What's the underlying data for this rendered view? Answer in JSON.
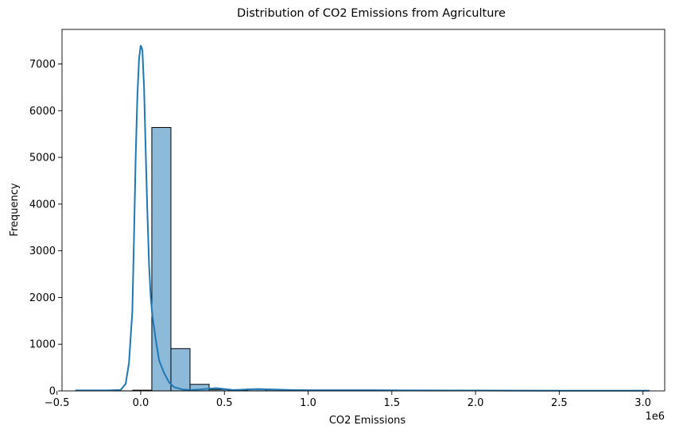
{
  "chart_data": {
    "type": "histogram",
    "title": "Distribution of CO2 Emissions from Agriculture",
    "xlabel": "CO2 Emissions",
    "ylabel": "Frequency",
    "x_offset_label": "1e6",
    "xlim": [
      -0.47,
      3.13
    ],
    "ylim": [
      0,
      7740
    ],
    "x_unit_scale": 1000000,
    "x_ticks": [
      -0.5,
      0.0,
      0.5,
      1.0,
      1.5,
      2.0,
      2.5,
      3.0
    ],
    "x_tick_labels": [
      "−0.5",
      "0.0",
      "0.5",
      "1.0",
      "1.5",
      "2.0",
      "2.5",
      "3.0"
    ],
    "y_ticks": [
      0,
      1000,
      2000,
      3000,
      4000,
      5000,
      6000,
      7000
    ],
    "y_tick_labels": [
      "0",
      "1000",
      "2000",
      "3000",
      "4000",
      "5000",
      "6000",
      "7000"
    ],
    "bins": {
      "start": -0.39,
      "width": 0.1141,
      "counts": [
        2,
        0,
        1,
        15,
        5640,
        905,
        140,
        30,
        12,
        40,
        25,
        18,
        10,
        8,
        6,
        5,
        4,
        3,
        3,
        2,
        2,
        1,
        1,
        1,
        1,
        1,
        1,
        1,
        1,
        1
      ]
    },
    "kde": {
      "x": [
        -0.39,
        -0.2,
        -0.12,
        -0.09,
        -0.07,
        -0.05,
        -0.04,
        -0.03,
        -0.02,
        -0.01,
        0.0,
        0.01,
        0.02,
        0.03,
        0.04,
        0.05,
        0.06,
        0.07,
        0.09,
        0.11,
        0.14,
        0.17,
        0.2,
        0.25,
        0.3,
        0.35,
        0.4,
        0.45,
        0.5,
        0.55,
        0.6,
        0.65,
        0.7,
        0.75,
        0.8,
        0.9,
        1.0,
        1.2,
        1.4,
        1.6,
        2.0,
        2.5,
        3.04
      ],
      "y": [
        10,
        10,
        20,
        150,
        600,
        1700,
        3300,
        5000,
        6300,
        7100,
        7400,
        7300,
        6500,
        5100,
        3800,
        2700,
        2000,
        1600,
        1100,
        650,
        380,
        180,
        80,
        30,
        20,
        30,
        45,
        60,
        40,
        20,
        25,
        35,
        40,
        35,
        30,
        20,
        15,
        15,
        15,
        10,
        8,
        5,
        5
      ]
    },
    "bar_color": "#8ebad9",
    "bar_edge_color": "#000000",
    "line_color": "#1f77b4",
    "grid": false,
    "legend": "none"
  }
}
